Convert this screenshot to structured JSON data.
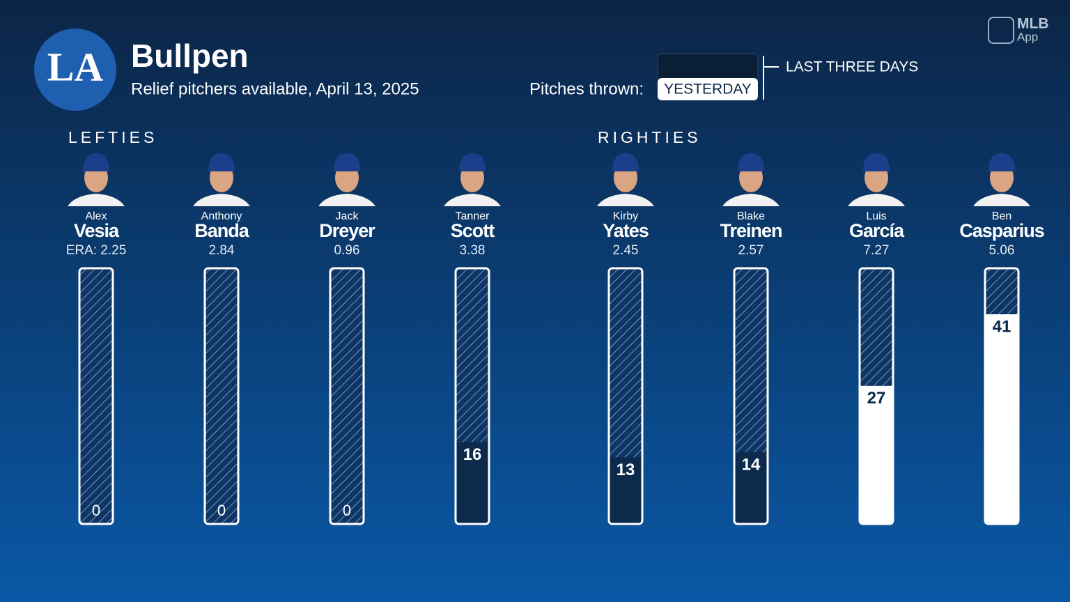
{
  "header": {
    "logo": "LA",
    "title": "Bullpen",
    "subtitle": "Relief pitchers available, April 13, 2025",
    "toggle_label": "Pitches thrown:",
    "toggle_selected": "YESTERDAY",
    "toggle_other": "LAST THREE DAYS",
    "brand": "MLB",
    "brand_sub": "App"
  },
  "chart_data": [
    {
      "type": "bar",
      "title": "LEFTIES",
      "first_names": [
        "Alex",
        "Anthony",
        "Jack",
        "Tanner"
      ],
      "categories": [
        "Vesia",
        "Banda",
        "Dreyer",
        "Scott"
      ],
      "era": [
        "ERA: 2.25",
        "2.84",
        "0.96",
        "3.38"
      ],
      "values": [
        0,
        0,
        0,
        16
      ],
      "colors": [
        "#0b2a4c",
        "#0b2a4c",
        "#0b2a4c",
        "#0b2a4c"
      ],
      "ylim": [
        0,
        50
      ]
    },
    {
      "type": "bar",
      "title": "RIGHTIES",
      "first_names": [
        "Kirby",
        "Blake",
        "Luis",
        "Ben"
      ],
      "categories": [
        "Yates",
        "Treinen",
        "García",
        "Casparius"
      ],
      "era": [
        "2.45",
        "2.57",
        "7.27",
        "5.06"
      ],
      "values": [
        13,
        14,
        27,
        41
      ],
      "colors": [
        "#0b2a4c",
        "#0b2a4c",
        "#ffffff",
        "#ffffff"
      ],
      "ylim": [
        0,
        50
      ]
    }
  ]
}
